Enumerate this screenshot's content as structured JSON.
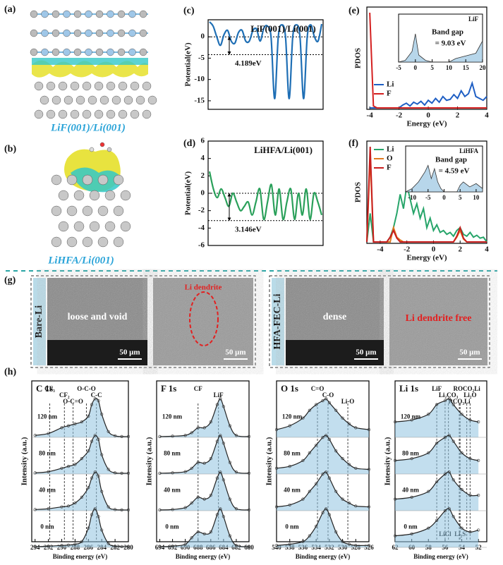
{
  "panel_labels": [
    "(a)",
    "(b)",
    "(c)",
    "(d)",
    "(e)",
    "(f)",
    "(g)",
    "(h)"
  ],
  "structures": {
    "a_caption": "LiF(001)/Li(001)",
    "b_caption": "LiHFA/Li(001)"
  },
  "sem": {
    "bare": {
      "side_label": "Bare-Li",
      "left_text": "loose and void",
      "left_scale": "50 μm",
      "right_text": "Li dendrite",
      "right_scale": "50 μm"
    },
    "hfa": {
      "side_label": "HFA-FEC-Li",
      "left_text": "dense",
      "left_scale": "50 μm",
      "right_text": "Li dendrite free",
      "right_scale": "50 μm"
    }
  },
  "chart_data": [
    {
      "type": "potential",
      "title": "LiF(001)/Li(001)",
      "y_label": "Potential(eV)",
      "annotation": "4.189eV",
      "ref_lines": [
        0,
        -4.189
      ],
      "color": "#1f6fb5",
      "ylim": [
        -17,
        4
      ],
      "yticks": [
        -15,
        -10,
        -5,
        0
      ],
      "values": [
        3.5,
        2.5,
        0,
        -2,
        0.5,
        1.5,
        -1,
        -1.5,
        1,
        1.5,
        -1,
        -1,
        1.5,
        1.8,
        -1,
        2,
        2.5,
        0,
        -14.5,
        0,
        2.8,
        0,
        -14.5,
        0,
        2.8,
        0,
        -14.5,
        0,
        2.8,
        0,
        -1,
        3
      ]
    },
    {
      "type": "potential",
      "title": "LiHFA/Li(001)",
      "y_label": "Potential(eV)",
      "annotation": "3.146eV",
      "ref_lines": [
        0,
        -3.146
      ],
      "color": "#2aa05a",
      "ylim": [
        -6,
        6
      ],
      "yticks": [
        -6,
        -4,
        -2,
        0,
        2,
        4,
        6
      ],
      "values": [
        2.5,
        0.5,
        -0.5,
        0.5,
        -0.5,
        -1.5,
        0,
        -1,
        -2,
        -1.5,
        -1,
        -2.5,
        -1,
        0.5,
        -3,
        -1,
        1,
        -2.5,
        0.5,
        -3,
        -1,
        0.5,
        -3,
        0,
        -2.5,
        0.5,
        -3,
        0,
        -1,
        -2.5
      ]
    },
    {
      "type": "pdos",
      "x_label": "Energy (eV)",
      "y_label": "PDOS",
      "xlim": [
        -4.2,
        4
      ],
      "xticks": [
        -4,
        -2,
        0,
        2,
        4
      ],
      "ylim": [
        0,
        1
      ],
      "x": [
        -4,
        -3.75,
        -3.5,
        -3.25,
        -3,
        -2.75,
        -2.5,
        -2.25,
        -2,
        -1.75,
        -1.5,
        -1.25,
        -1,
        -0.75,
        -0.5,
        -0.25,
        0,
        0.25,
        0.5,
        0.75,
        1,
        1.25,
        1.5,
        1.75,
        2,
        2.25,
        2.5,
        2.75,
        3,
        3.25,
        3.5,
        3.75,
        4
      ],
      "series": [
        {
          "name": "Li",
          "color": "#1f5fc4",
          "values": [
            0,
            0,
            0,
            0,
            0,
            0,
            0,
            0,
            0,
            0.03,
            0.05,
            0.02,
            0.06,
            0.04,
            0.07,
            0.03,
            0.08,
            0.05,
            0.1,
            0.06,
            0.12,
            0.08,
            0.09,
            0.14,
            0.1,
            0.18,
            0.12,
            0.15,
            0.26,
            0.12,
            0.1,
            0.08,
            0.12
          ]
        },
        {
          "name": "F",
          "color": "#d42020",
          "values": [
            1,
            0.02,
            0,
            0,
            0,
            0,
            0,
            0,
            0,
            0,
            0,
            0,
            0,
            0,
            0,
            0,
            0,
            0,
            0,
            0,
            0,
            0,
            0,
            0,
            0,
            0,
            0,
            0,
            0,
            0,
            0,
            0,
            0
          ]
        }
      ],
      "inset": {
        "title": "LiF",
        "text1": "Band gap",
        "text2": "= 9.03 eV",
        "xlim": [
          -5,
          20
        ],
        "xticks": [
          -5,
          0,
          5,
          10,
          15,
          20
        ],
        "ylim": [
          0,
          1
        ],
        "x": [
          -5,
          -3,
          -1,
          0,
          1,
          3,
          5,
          10,
          12,
          14,
          16,
          18,
          20
        ],
        "values": [
          0,
          0.05,
          0.3,
          0.8,
          0.2,
          0.05,
          0,
          0,
          0.1,
          0.15,
          0.2,
          0.25,
          0.6
        ]
      }
    },
    {
      "type": "pdos",
      "x_label": "Energy (eV)",
      "y_label": "PDOS",
      "xlim": [
        -5,
        4
      ],
      "xticks": [
        -4,
        -2,
        0,
        2,
        4
      ],
      "ylim": [
        0,
        1
      ],
      "x": [
        -5,
        -4.75,
        -4.5,
        -4.25,
        -4,
        -3.75,
        -3.5,
        -3.25,
        -3,
        -2.75,
        -2.5,
        -2.25,
        -2,
        -1.75,
        -1.5,
        -1.25,
        -1,
        -0.75,
        -0.5,
        -0.25,
        0,
        0.25,
        0.5,
        0.75,
        1,
        1.25,
        1.5,
        1.75,
        2,
        2.25,
        2.5,
        2.75,
        3,
        3.25,
        3.5,
        3.75,
        4
      ],
      "series": [
        {
          "name": "Li",
          "color": "#27a56a",
          "values": [
            0,
            0.3,
            0,
            0,
            0,
            0,
            0,
            0.05,
            0.15,
            0.3,
            0.5,
            0.35,
            0.6,
            0.45,
            0.3,
            0.4,
            0.25,
            0.35,
            0.15,
            0.25,
            0.12,
            0.18,
            0.1,
            0.12,
            0.08,
            0.1,
            0.06,
            0.12,
            0.15,
            0.08,
            0.06,
            0.1,
            0.05,
            0.07,
            0.04,
            0.05,
            0
          ]
        },
        {
          "name": "O",
          "color": "#e07a20",
          "values": [
            0,
            0.9,
            0,
            0,
            0,
            0,
            0,
            0,
            0.15,
            0.05,
            0.02,
            0,
            0,
            0,
            0,
            0,
            0,
            0,
            0,
            0,
            0,
            0,
            0,
            0,
            0,
            0,
            0,
            0.05,
            0.12,
            0.03,
            0,
            0,
            0,
            0,
            0,
            0,
            0
          ]
        },
        {
          "name": "F",
          "color": "#c81e1e",
          "values": [
            0,
            1,
            0,
            0,
            0,
            0,
            0,
            0.05,
            0.12,
            0.04,
            0,
            0,
            0,
            0,
            0,
            0,
            0,
            0,
            0,
            0,
            0,
            0,
            0,
            0,
            0,
            0,
            0,
            0.06,
            0.15,
            0.04,
            0,
            0,
            0,
            0,
            0,
            0,
            0
          ]
        }
      ],
      "inset": {
        "title": "LiHFA",
        "text1": "Band gap",
        "text2": "= 4.59 eV",
        "xlim": [
          -12,
          12
        ],
        "xticks": [
          -10,
          -5,
          0,
          5,
          10
        ],
        "ylim": [
          0,
          1
        ],
        "x": [
          -12,
          -10,
          -8,
          -6,
          -5,
          -4,
          -3,
          -2,
          -1,
          0,
          2,
          4,
          5,
          6,
          8,
          10,
          12
        ],
        "values": [
          0,
          0.1,
          0.3,
          0.6,
          0.8,
          0.4,
          0.7,
          0.3,
          0.1,
          0,
          0,
          0,
          0.2,
          0.3,
          0.15,
          0.25,
          0.1
        ]
      }
    },
    {
      "type": "xps",
      "title": "C 1s",
      "x_label": "Binding energy (eV)",
      "y_label": "Intensity (a.u.)",
      "xlim": [
        294.5,
        280
      ],
      "xticks": [
        294,
        292,
        290,
        288,
        286,
        284,
        282,
        280
      ],
      "ylim": [
        0,
        1
      ],
      "peak_lines": [
        {
          "value": 291.8,
          "label": "CF₃"
        },
        {
          "value": 289.6,
          "label": "CF₂"
        },
        {
          "value": 288.3,
          "label": "O-C=O"
        },
        {
          "value": 286.3,
          "label": "O-C-O"
        },
        {
          "value": 284.8,
          "label": "C-C"
        }
      ],
      "x": [
        294,
        292,
        290,
        289,
        288,
        287,
        286,
        285.5,
        285,
        284.5,
        284,
        283,
        282,
        281,
        280
      ],
      "series": [
        {
          "name": "120 nm",
          "values": [
            0.05,
            0.1,
            0.25,
            0.3,
            0.35,
            0.4,
            0.55,
            0.85,
            1,
            0.95,
            0.6,
            0.15,
            0.04,
            0.02,
            0.02
          ]
        },
        {
          "name": "80 nm",
          "values": [
            0.03,
            0.06,
            0.15,
            0.2,
            0.25,
            0.4,
            0.6,
            0.85,
            1,
            0.9,
            0.5,
            0.12,
            0.03,
            0.02,
            0.02
          ]
        },
        {
          "name": "40 nm",
          "values": [
            0.03,
            0.05,
            0.1,
            0.12,
            0.2,
            0.35,
            0.6,
            0.85,
            1,
            0.9,
            0.5,
            0.1,
            0.03,
            0.02,
            0.02
          ]
        },
        {
          "name": "0 nm",
          "values": [
            0.02,
            0.03,
            0.05,
            0.06,
            0.08,
            0.15,
            0.5,
            0.85,
            1,
            0.8,
            0.45,
            0.1,
            0.03,
            0.02,
            0.02
          ]
        }
      ]
    },
    {
      "type": "xps",
      "title": "F 1s",
      "x_label": "Binding energy (eV)",
      "y_label": "Intensity (a.u.)",
      "xlim": [
        694.5,
        680
      ],
      "xticks": [
        694,
        692,
        690,
        688,
        686,
        684,
        682,
        680
      ],
      "ylim": [
        0,
        1
      ],
      "peak_lines": [
        {
          "value": 688,
          "label": "CF"
        },
        {
          "value": 684.8,
          "label": "LiF"
        }
      ],
      "x": [
        694,
        692,
        690,
        689,
        688,
        687,
        686,
        685,
        684.5,
        684,
        683,
        682,
        680
      ],
      "series": [
        {
          "name": "120 nm",
          "values": [
            0.02,
            0.03,
            0.05,
            0.12,
            0.25,
            0.25,
            0.4,
            0.85,
            1,
            0.8,
            0.3,
            0.05,
            0.02
          ]
        },
        {
          "name": "80 nm",
          "values": [
            0.02,
            0.03,
            0.06,
            0.15,
            0.3,
            0.28,
            0.4,
            0.85,
            1,
            0.8,
            0.3,
            0.05,
            0.02
          ]
        },
        {
          "name": "40 nm",
          "values": [
            0.02,
            0.03,
            0.08,
            0.2,
            0.35,
            0.3,
            0.4,
            0.85,
            1,
            0.8,
            0.3,
            0.05,
            0.02
          ]
        },
        {
          "name": "0 nm",
          "values": [
            0.02,
            0.03,
            0.08,
            0.25,
            0.4,
            0.35,
            0.4,
            0.85,
            1,
            0.8,
            0.3,
            0.05,
            0.02
          ]
        }
      ]
    },
    {
      "type": "xps",
      "title": "O 1s",
      "x_label": "Binding energy (eV)",
      "y_label": "Intensity (a.u.)",
      "xlim": [
        540,
        526
      ],
      "xticks": [
        540,
        538,
        536,
        534,
        532,
        530,
        528,
        526
      ],
      "ylim": [
        0,
        1
      ],
      "peak_lines": [
        {
          "value": 533.8,
          "label": "C=O"
        },
        {
          "value": 532.2,
          "label": "C-O"
        },
        {
          "value": 529.2,
          "label": "Li-O"
        }
      ],
      "x": [
        540,
        538,
        536,
        535,
        534,
        533,
        532.5,
        532,
        531,
        530,
        529,
        528,
        526
      ],
      "series": [
        {
          "name": "120 nm",
          "values": [
            0.2,
            0.3,
            0.5,
            0.7,
            0.85,
            0.95,
            1,
            0.9,
            0.7,
            0.5,
            0.35,
            0.25,
            0.2
          ]
        },
        {
          "name": "80 nm",
          "values": [
            0.15,
            0.2,
            0.35,
            0.55,
            0.75,
            0.95,
            1,
            0.9,
            0.6,
            0.4,
            0.25,
            0.15,
            0.12
          ]
        },
        {
          "name": "40 nm",
          "values": [
            0.1,
            0.15,
            0.3,
            0.5,
            0.7,
            0.95,
            1,
            0.85,
            0.5,
            0.3,
            0.2,
            0.12,
            0.1
          ]
        },
        {
          "name": "0 nm",
          "values": [
            0.05,
            0.08,
            0.15,
            0.3,
            0.55,
            0.9,
            1,
            0.85,
            0.4,
            0.15,
            0.08,
            0.05,
            0.05
          ]
        }
      ]
    },
    {
      "type": "xps",
      "title": "Li 1s",
      "x_label": "Binding energy (eV)",
      "y_label": "Intensity (a.u.)",
      "xlim": [
        62,
        51
      ],
      "xticks": [
        62,
        60,
        58,
        56,
        54,
        52
      ],
      "ylim": [
        0,
        1
      ],
      "peak_lines": [
        {
          "value": 57,
          "label": "LiF"
        },
        {
          "value": 55.6,
          "label": "Li₂CO₃"
        },
        {
          "value": 54.3,
          "label": "RCO₃Li"
        },
        {
          "value": 53.4,
          "label": "ROCO₂Li"
        },
        {
          "value": 53,
          "label": "Li₂O"
        },
        {
          "value": 56,
          "label": "LiCl"
        },
        {
          "value": 54.2,
          "label": "Li₂S"
        }
      ],
      "x": [
        62,
        60,
        58,
        57,
        56,
        55.5,
        55,
        54,
        53,
        52
      ],
      "series": [
        {
          "name": "120 nm",
          "values": [
            0.4,
            0.45,
            0.6,
            0.85,
            0.95,
            1,
            0.85,
            0.6,
            0.45,
            0.4
          ]
        },
        {
          "name": "80 nm",
          "values": [
            0.35,
            0.4,
            0.55,
            0.8,
            0.95,
            1,
            0.85,
            0.55,
            0.4,
            0.35
          ]
        },
        {
          "name": "40 nm",
          "values": [
            0.3,
            0.35,
            0.5,
            0.75,
            0.95,
            1,
            0.8,
            0.55,
            0.4,
            0.4
          ]
        },
        {
          "name": "0 nm",
          "values": [
            0.3,
            0.35,
            0.5,
            0.7,
            0.95,
            1,
            0.8,
            0.5,
            0.4,
            0.45
          ]
        }
      ]
    }
  ]
}
